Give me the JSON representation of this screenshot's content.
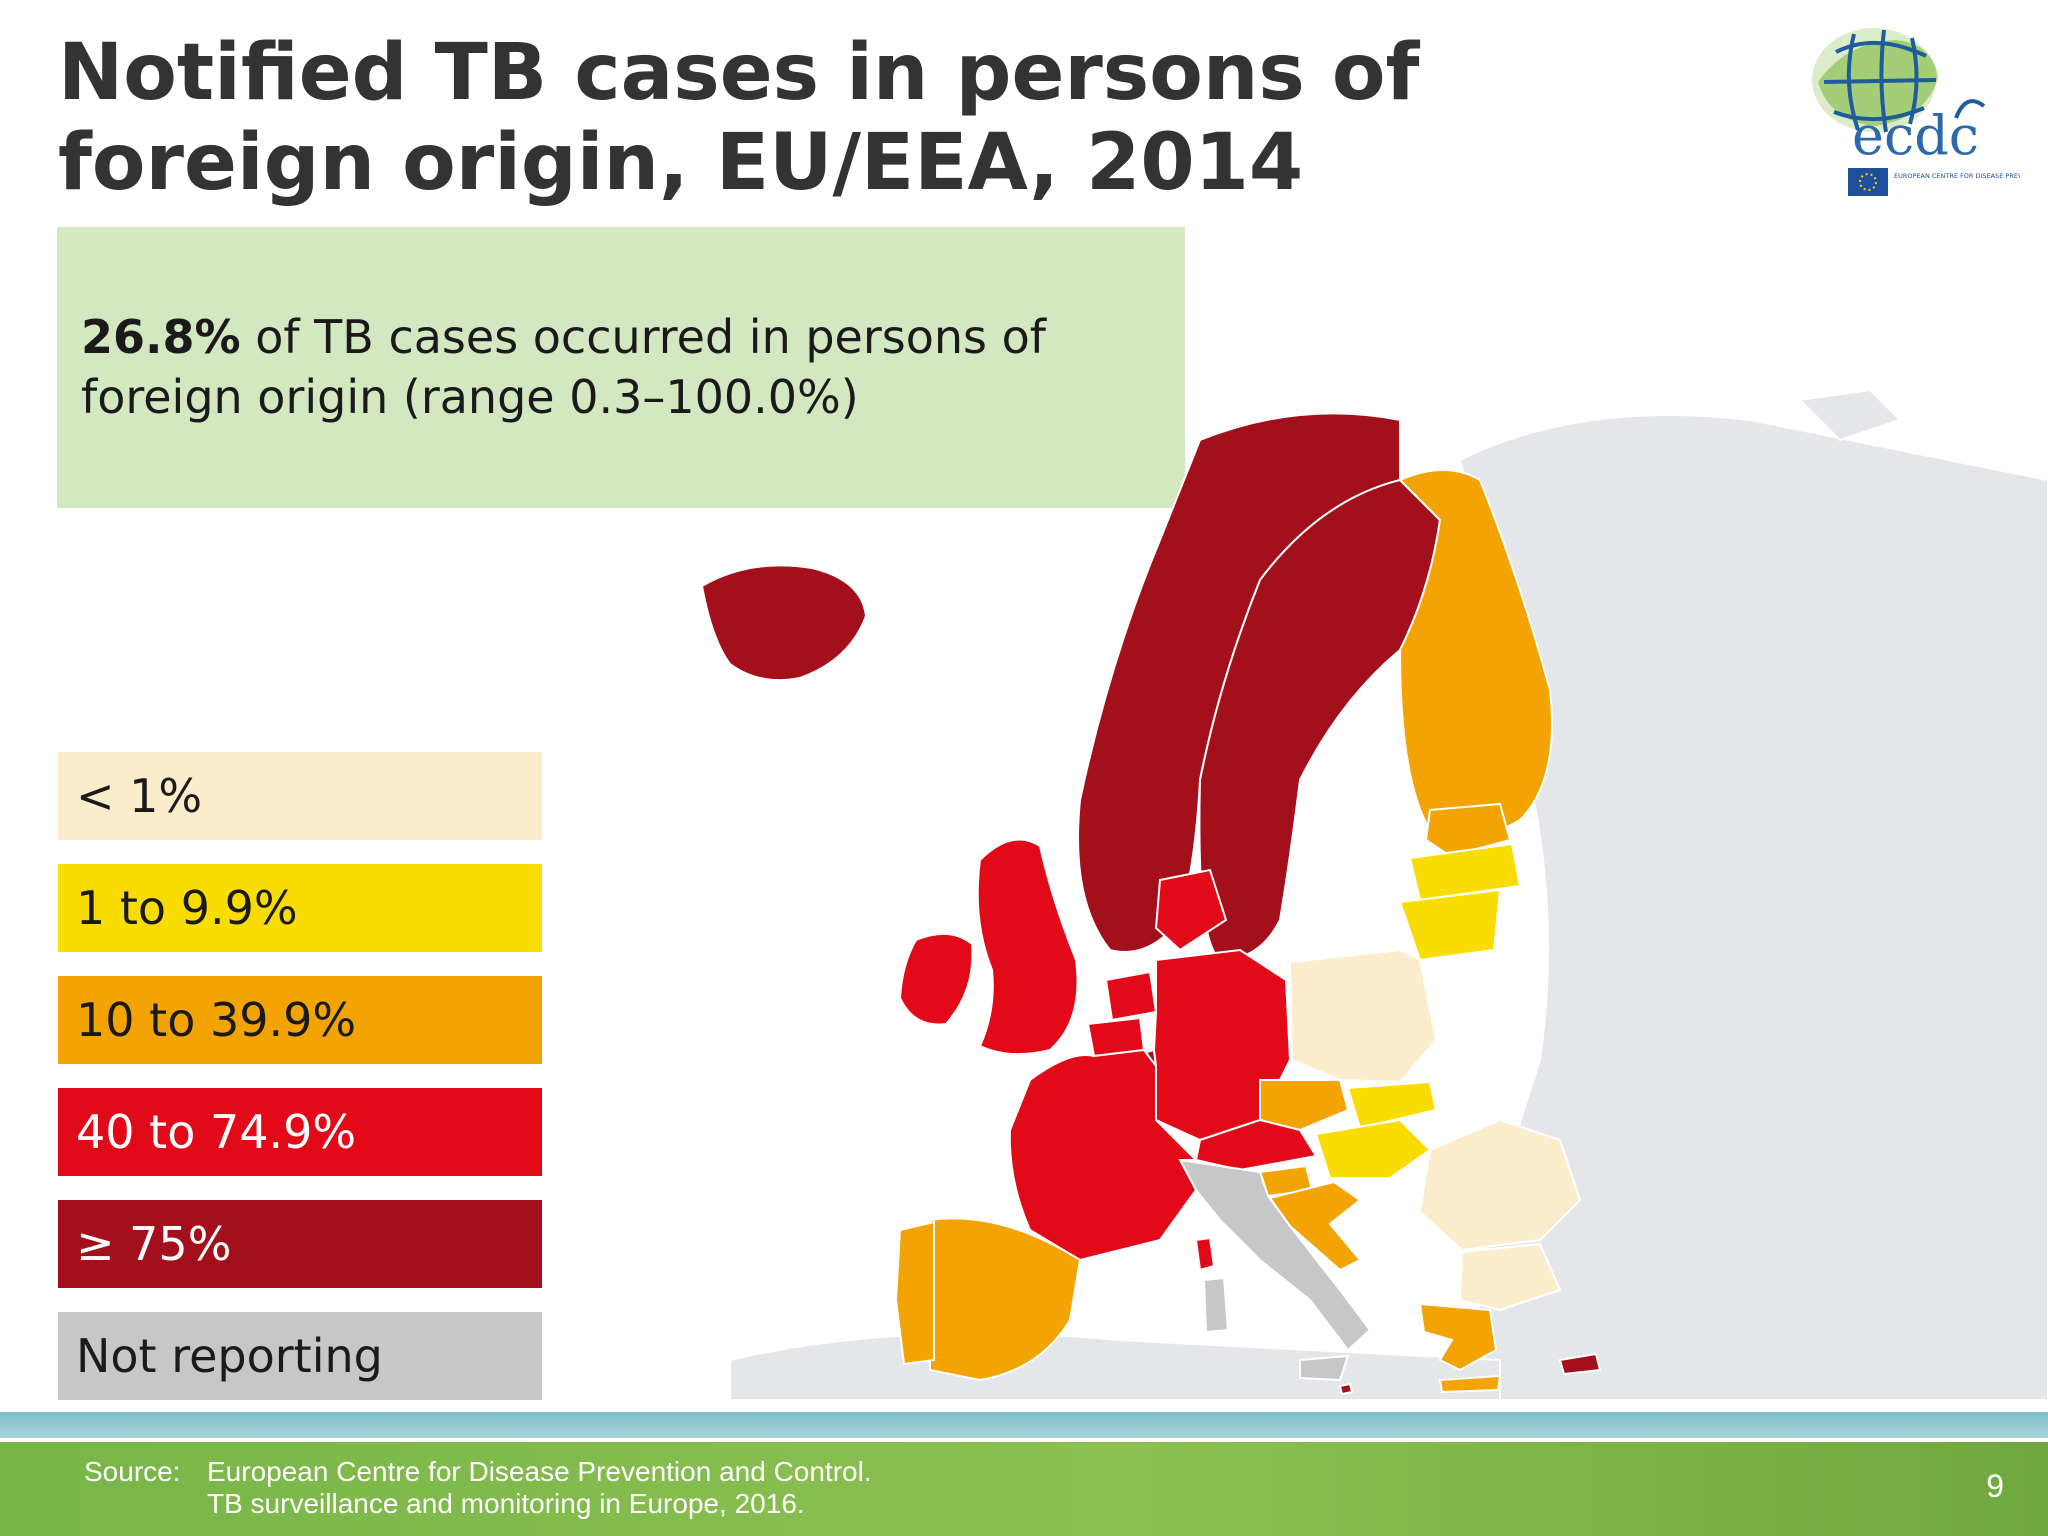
{
  "title": "Notified TB cases in persons of foreign origin, EU/EEA, 2014",
  "logo": {
    "text": "ecdc",
    "subtext": "EUROPEAN CENTRE FOR DISEASE PREVENTION AND CONTROL",
    "icon": "ecdc-globe-logo"
  },
  "callout": {
    "highlight": "26.8%",
    "text": " of TB cases occurred in persons of foreign origin (range 0.3–100.0%)"
  },
  "legend": [
    {
      "label": "< 1%",
      "bg": "#fbeccb",
      "fg": "#1a1a1a"
    },
    {
      "label": "1 to 9.9%",
      "bg": "#fadd00",
      "fg": "#1a1a1a"
    },
    {
      "label": "10 to 39.9%",
      "bg": "#f4a402",
      "fg": "#1a1a1a"
    },
    {
      "label": "40 to 74.9%",
      "bg": "#e20919",
      "fg": "#ffffff"
    },
    {
      "label": "≥ 75%",
      "bg": "#a30f1b",
      "fg": "#ffffff"
    },
    {
      "label": "Not reporting",
      "bg": "#c7c7c7",
      "fg": "#1a1a1a"
    }
  ],
  "map": {
    "colors": {
      "lt1": "#fbeccb",
      "c1to9": "#fadd00",
      "c10to39": "#f4a402",
      "c40to74": "#e20919",
      "ge75": "#a30f1b",
      "na": "#c7c7c7",
      "background_land": "#e4e6e9",
      "sea": "#ffffff"
    },
    "countries": [
      {
        "name": "Iceland",
        "class": "ge75"
      },
      {
        "name": "Norway",
        "class": "ge75"
      },
      {
        "name": "Sweden",
        "class": "ge75"
      },
      {
        "name": "Finland",
        "class": "c10to39"
      },
      {
        "name": "Estonia",
        "class": "c10to39"
      },
      {
        "name": "Latvia",
        "class": "c1to9"
      },
      {
        "name": "Lithuania",
        "class": "c1to9"
      },
      {
        "name": "Poland",
        "class": "lt1"
      },
      {
        "name": "Romania",
        "class": "lt1"
      },
      {
        "name": "Bulgaria",
        "class": "lt1"
      },
      {
        "name": "Slovakia",
        "class": "c1to9"
      },
      {
        "name": "Hungary",
        "class": "c1to9"
      },
      {
        "name": "Czech Republic",
        "class": "c10to39"
      },
      {
        "name": "Croatia",
        "class": "c10to39"
      },
      {
        "name": "Greece",
        "class": "c10to39"
      },
      {
        "name": "Spain",
        "class": "c10to39"
      },
      {
        "name": "Portugal",
        "class": "c10to39"
      },
      {
        "name": "Ireland",
        "class": "c40to74"
      },
      {
        "name": "United Kingdom",
        "class": "c40to74"
      },
      {
        "name": "Denmark",
        "class": "c40to74"
      },
      {
        "name": "Germany",
        "class": "c40to74"
      },
      {
        "name": "France",
        "class": "c40to74"
      },
      {
        "name": "Austria",
        "class": "c40to74"
      },
      {
        "name": "Belgium",
        "class": "c40to74"
      },
      {
        "name": "Netherlands",
        "class": "c40to74"
      },
      {
        "name": "Luxembourg",
        "class": "ge75"
      },
      {
        "name": "Malta",
        "class": "ge75"
      },
      {
        "name": "Cyprus",
        "class": "ge75"
      },
      {
        "name": "Italy",
        "class": "na"
      },
      {
        "name": "Slovenia",
        "class": "c10to39"
      }
    ]
  },
  "footer": {
    "source_label": "Source:",
    "source_line1": "European Centre for Disease Prevention and Control.",
    "source_line2": "TB surveillance and monitoring in Europe, 2016.",
    "page_number": "9"
  }
}
